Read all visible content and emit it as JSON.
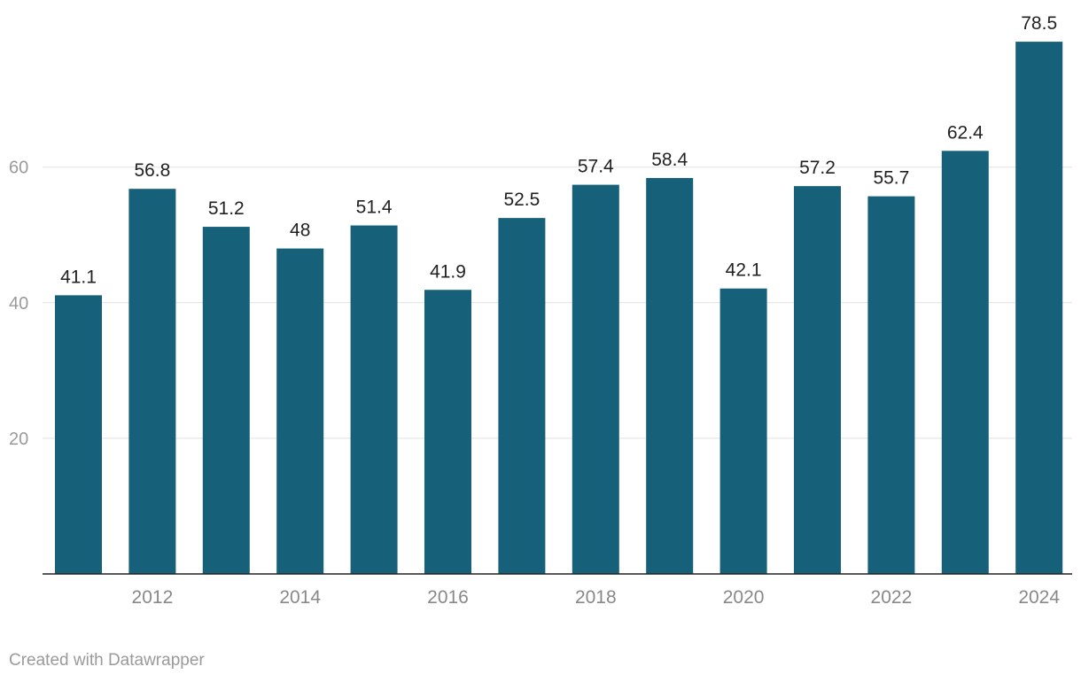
{
  "chart_data": {
    "type": "bar",
    "categories": [
      "2011",
      "2012",
      "2013",
      "2014",
      "2015",
      "2016",
      "2017",
      "2018",
      "2019",
      "2020",
      "2021",
      "2022",
      "2023",
      "2024"
    ],
    "series": [
      {
        "values": [
          41.1,
          56.8,
          51.2,
          48,
          51.4,
          41.9,
          52.5,
          57.4,
          58.4,
          42.1,
          57.2,
          55.7,
          62.4,
          78.5
        ]
      }
    ],
    "data_labels": [
      "41.1",
      "56.8",
      "51.2",
      "48",
      "51.4",
      "41.9",
      "52.5",
      "57.4",
      "58.4",
      "42.1",
      "57.2",
      "55.7",
      "62.4",
      "78.5"
    ],
    "x_tick_labels": [
      "2012",
      "2014",
      "2016",
      "2018",
      "2020",
      "2022",
      "2024"
    ],
    "y_ticks": [
      20,
      40,
      60
    ],
    "ylim": [
      0,
      80
    ],
    "grid": true,
    "legend": "none",
    "title": "",
    "xlabel": "",
    "ylabel": "",
    "bar_color": "#17607a"
  },
  "footer": {
    "credit": "Created with Datawrapper"
  }
}
